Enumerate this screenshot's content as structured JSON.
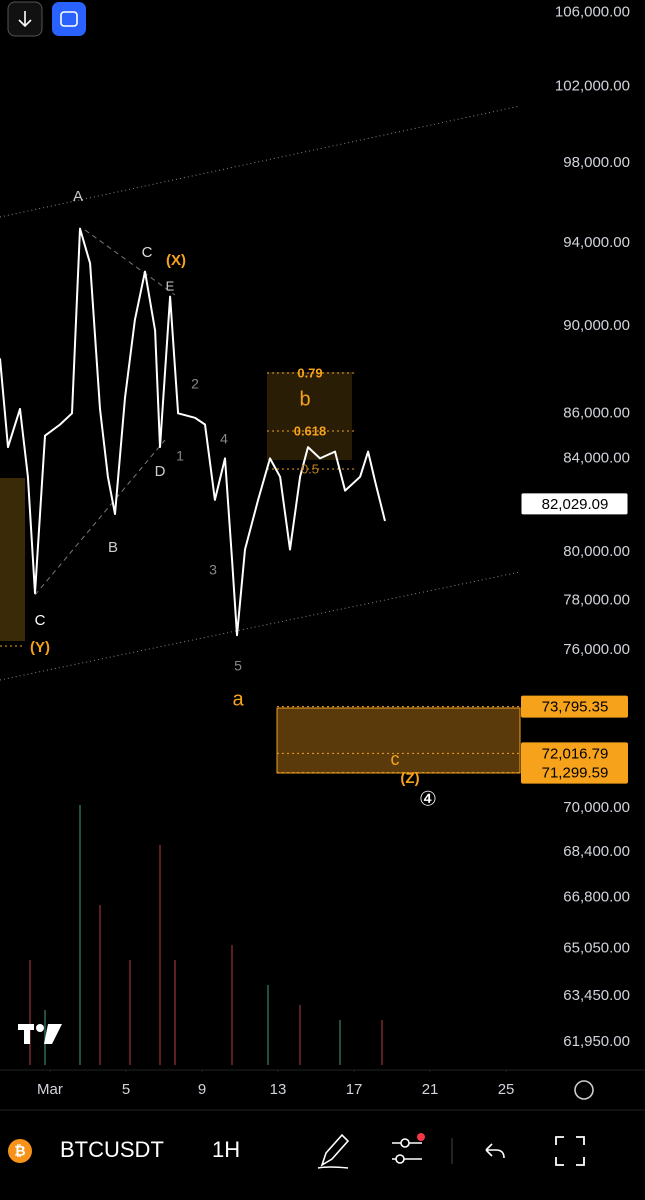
{
  "chart_data": {
    "type": "line",
    "symbol": "BTCUSDT",
    "interval": "1H",
    "log_scale": true,
    "x": [
      -1.63,
      -1.21,
      -0.58,
      -0.16,
      0.21,
      0.74,
      1.53,
      2.16,
      2.58,
      3.11,
      3.63,
      4.05,
      4.42,
      4.95,
      5.47,
      6.0,
      6.53,
      6.79,
      7.32,
      7.74,
      8.63,
      9.16,
      9.68,
      10.21,
      10.58,
      10.84,
      11.26,
      11.95,
      12.58,
      13.11,
      13.63,
      14.16,
      14.58,
      15.21,
      16.0,
      16.53,
      17.32,
      17.74,
      18.11,
      18.63
    ],
    "series": [
      {
        "color": "#ffffff",
        "values": [
          88500,
          84500,
          86200,
          83200,
          78300,
          85000,
          85500,
          86000,
          94700,
          93000,
          86200,
          83200,
          81600,
          86700,
          90300,
          92600,
          89800,
          84500,
          91400,
          86000,
          85800,
          85500,
          82200,
          84000,
          79700,
          76600,
          80100,
          82200,
          84000,
          83200,
          80100,
          83200,
          84500,
          84000,
          84300,
          82600,
          83200,
          84300,
          83000,
          81300
        ]
      }
    ],
    "xlim": [
      -1.63,
      25.47
    ],
    "xticks": [
      {
        "value": 1,
        "label": "Mar"
      },
      5,
      9,
      13,
      17,
      21,
      25
    ],
    "ylim": [
      61210,
      106700
    ],
    "yticks": [
      {
        "value": 106000,
        "label": "106,000.00"
      },
      {
        "value": 102000,
        "label": "102,000.00"
      },
      {
        "value": 98000,
        "label": "98,000.00"
      },
      {
        "value": 94000,
        "label": "94,000.00"
      },
      {
        "value": 90000,
        "label": "90,000.00"
      },
      {
        "value": 86000,
        "label": "86,000.00"
      },
      {
        "value": 84000,
        "label": "84,000.00"
      },
      {
        "value": 80000,
        "label": "80,000.00"
      },
      {
        "value": 78000,
        "label": "78,000.00"
      },
      {
        "value": 76000,
        "label": "76,000.00"
      },
      {
        "value": 70000,
        "label": "70,000.00"
      },
      {
        "value": 68400,
        "label": "68,400.00"
      },
      {
        "value": 66800,
        "label": "66,800.00"
      },
      {
        "value": 65050,
        "label": "65,050.00"
      },
      {
        "value": 63450,
        "label": "63,450.00"
      },
      {
        "value": 61950,
        "label": "61,950.00"
      }
    ],
    "price_labels": [
      {
        "value": 82029.09,
        "label": "82,029.09"
      },
      {
        "value": 73795.35,
        "label": "73,795.35"
      },
      {
        "value": 72016.79,
        "label": "72,016.79"
      },
      {
        "value": 71299.59,
        "label": "71,299.59"
      }
    ],
    "annotations": [
      "A",
      "C",
      "(X)",
      "E",
      "2",
      "1",
      "D",
      "4",
      "B",
      "3",
      "5",
      "a",
      "C",
      "(Y)",
      "b",
      "0.79",
      "0.618",
      "0.5",
      "c",
      "(Z)",
      "④"
    ]
  }
}
